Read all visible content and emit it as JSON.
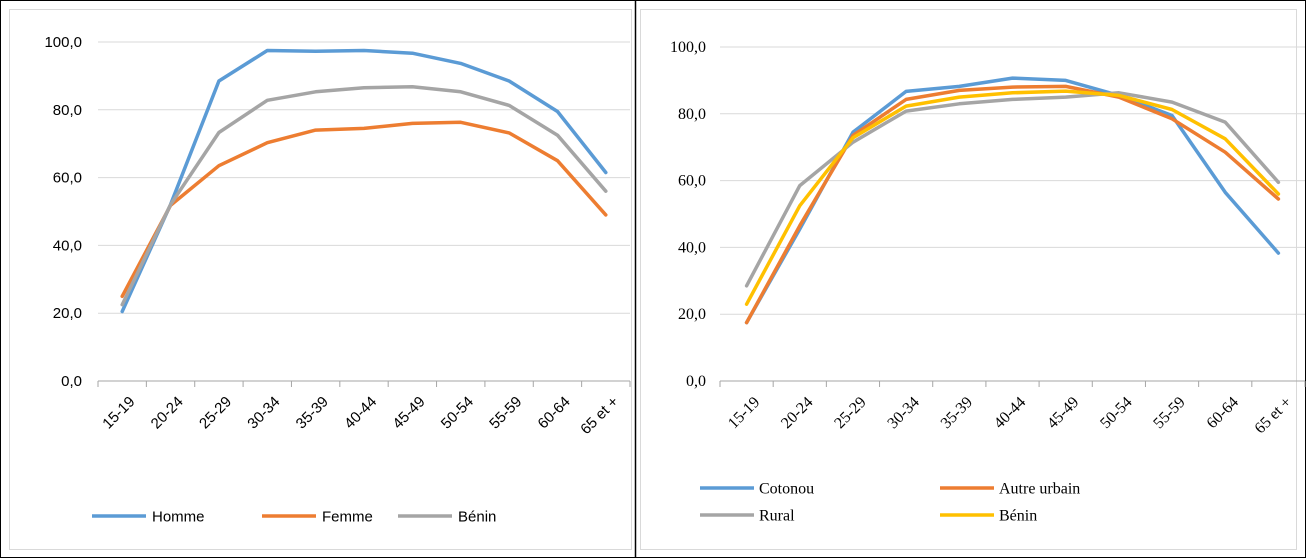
{
  "charts": [
    {
      "type": "line",
      "categories": [
        "15-19",
        "20-24",
        "25-29",
        "30-34",
        "35-39",
        "40-44",
        "45-49",
        "50-54",
        "55-59",
        "60-64",
        "65 et +"
      ],
      "y_tick_labels": [
        "0,0",
        "20,0",
        "40,0",
        "60,0",
        "80,0",
        "100,0"
      ],
      "ylim": [
        0,
        100
      ],
      "grid": true,
      "legend_position": "bottom",
      "series": [
        {
          "name": "Homme",
          "color": "#5B9BD5",
          "values": [
            20.5,
            52.0,
            88.5,
            97.5,
            97.3,
            97.5,
            96.7,
            93.7,
            88.5,
            79.5,
            61.5
          ]
        },
        {
          "name": "Femme",
          "color": "#ED7D31",
          "values": [
            25.0,
            51.8,
            63.5,
            70.3,
            74.0,
            74.5,
            76.0,
            76.3,
            73.2,
            65.0,
            49.0
          ]
        },
        {
          "name": "Bénin",
          "color": "#A5A5A5",
          "values": [
            22.5,
            52.0,
            73.3,
            82.8,
            85.3,
            86.5,
            86.8,
            85.3,
            81.3,
            72.5,
            56.0
          ]
        }
      ]
    },
    {
      "type": "line",
      "categories": [
        "15-19",
        "20-24",
        "25-29",
        "30-34",
        "35-39",
        "40-44",
        "45-49",
        "50-54",
        "55-59",
        "60-64",
        "65 et +"
      ],
      "y_tick_labels": [
        "0,0",
        "20,0",
        "40,0",
        "60,0",
        "80,0",
        "100,0"
      ],
      "ylim": [
        0,
        100
      ],
      "grid": true,
      "legend_position": "bottom",
      "series": [
        {
          "name": "Cotonou",
          "color": "#5B9BD5",
          "values": [
            17.5,
            45.5,
            74.5,
            86.7,
            88.2,
            90.7,
            90.0,
            85.5,
            79.5,
            56.5,
            38.3
          ]
        },
        {
          "name": "Autre urbain",
          "color": "#ED7D31",
          "values": [
            17.5,
            46.5,
            73.5,
            84.3,
            87.0,
            88.0,
            88.2,
            85.0,
            78.5,
            68.5,
            54.5
          ]
        },
        {
          "name": "Rural",
          "color": "#A5A5A5",
          "values": [
            28.5,
            58.5,
            71.5,
            80.8,
            83.0,
            84.3,
            85.0,
            86.3,
            83.5,
            77.5,
            59.5
          ]
        },
        {
          "name": "Bénin",
          "color": "#FFC000",
          "values": [
            23.0,
            52.5,
            72.8,
            82.3,
            85.0,
            86.3,
            86.8,
            85.5,
            81.3,
            72.5,
            56.0
          ]
        }
      ]
    }
  ]
}
